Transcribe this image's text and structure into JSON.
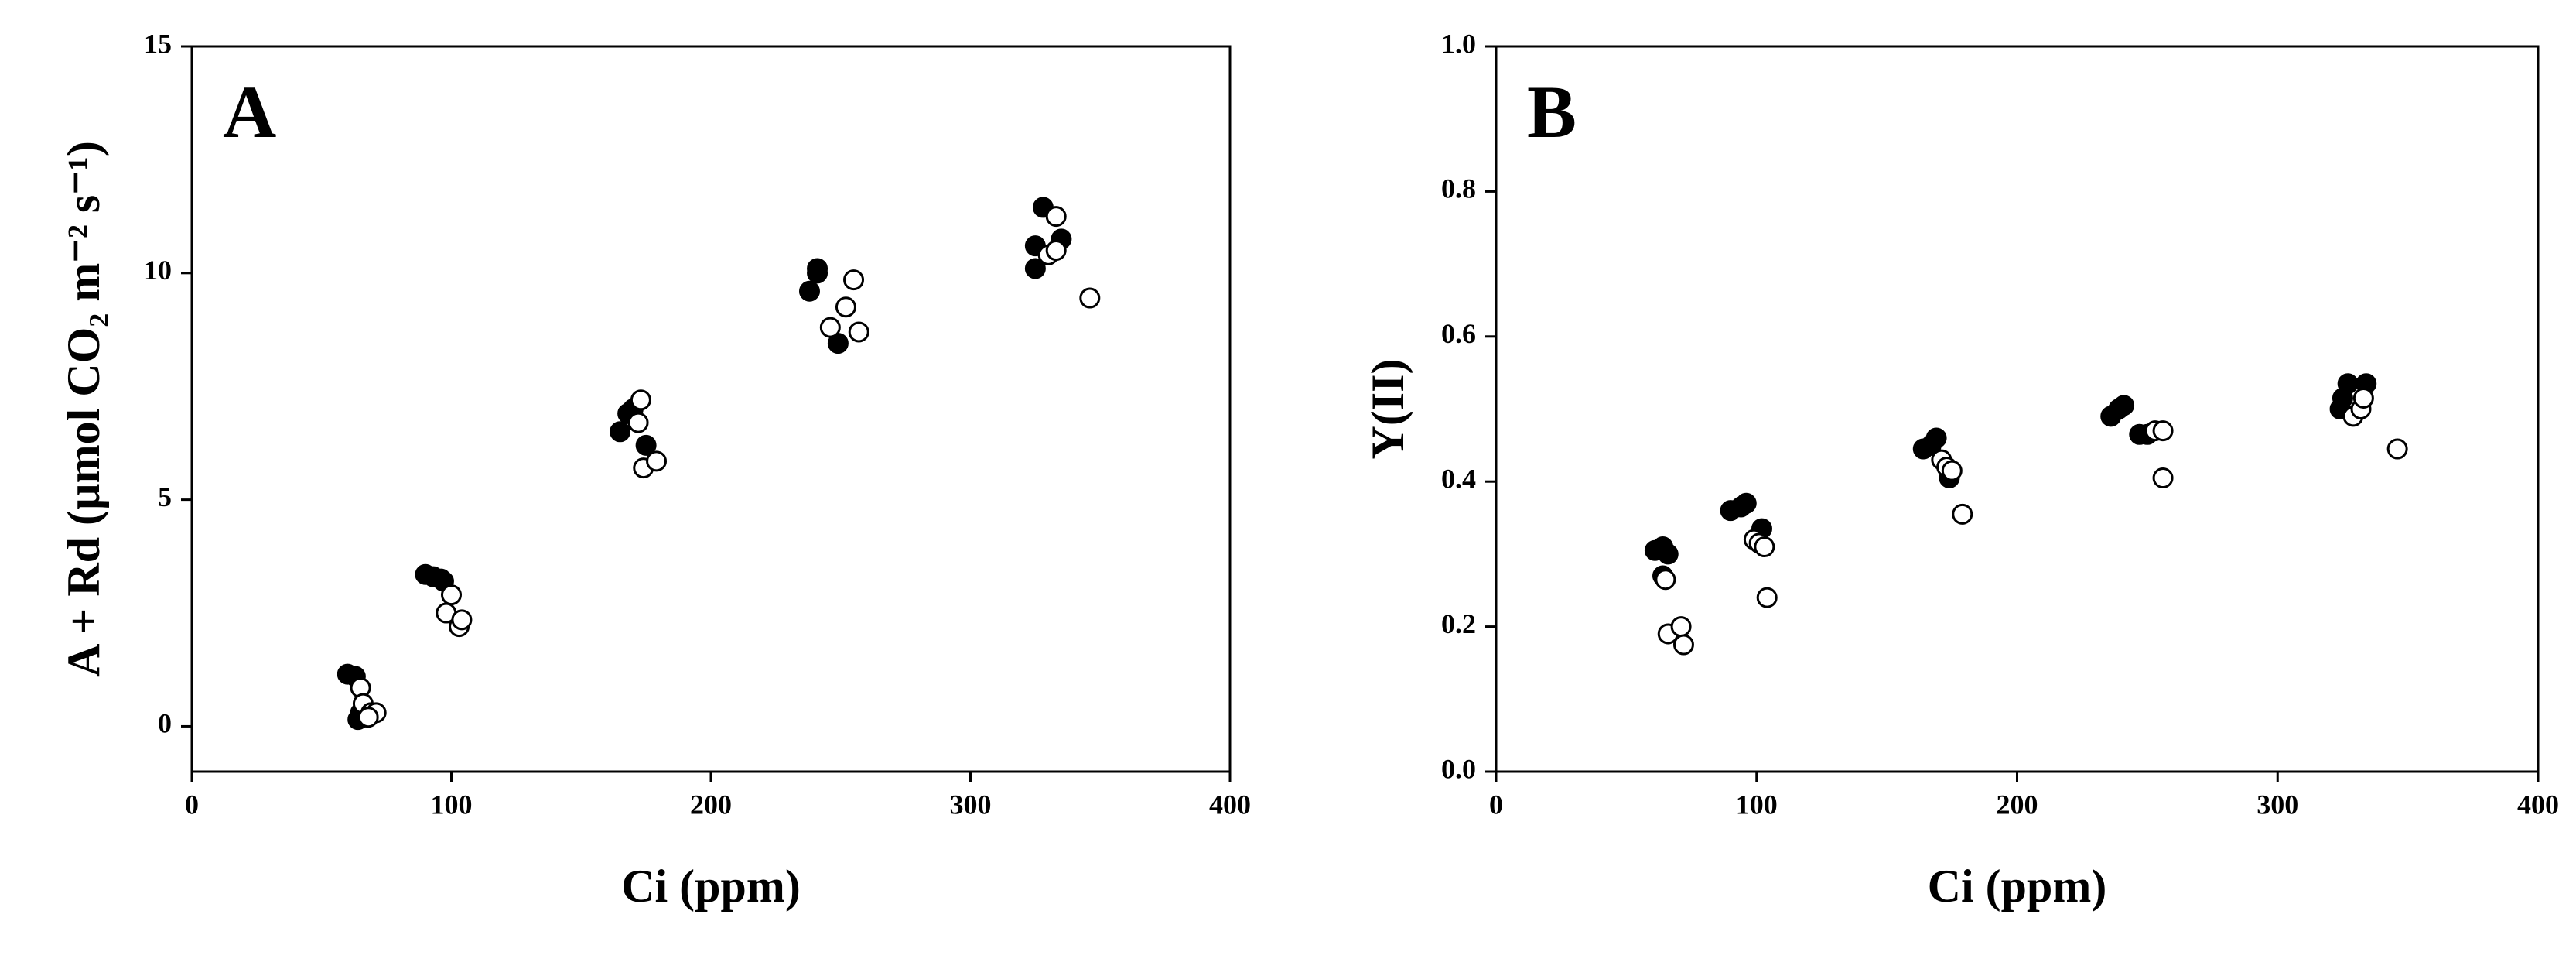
{
  "chart_data": [
    {
      "type": "scatter",
      "panel_label": "A",
      "x_label": "Ci (ppm)",
      "y_label": "A + Rd (µmol CO₂ m⁻² s⁻¹)",
      "xlim": [
        0,
        400
      ],
      "xticks": [
        0,
        100,
        200,
        300,
        400
      ],
      "ylim": [
        -1,
        15
      ],
      "yticks": [
        0,
        5,
        10,
        15
      ],
      "series": [
        {
          "color": "#000000",
          "marker_fill": "#000000",
          "x": [
            60,
            63,
            65,
            66,
            64,
            90,
            93,
            96,
            97,
            165,
            168,
            170,
            175,
            238,
            241,
            241,
            249,
            325,
            325,
            328,
            335
          ],
          "values": [
            1.15,
            1.1,
            0.3,
            0.2,
            0.15,
            3.35,
            3.3,
            3.25,
            3.2,
            6.5,
            6.9,
            7.0,
            6.2,
            9.6,
            10.0,
            10.1,
            8.45,
            10.1,
            10.6,
            11.45,
            10.75
          ]
        },
        {
          "color": "#000000",
          "marker_fill": "#ffffff",
          "x": [
            65,
            66,
            69,
            71,
            68,
            100,
            98,
            103,
            104,
            173,
            172,
            174,
            179,
            246,
            252,
            255,
            257,
            330,
            333,
            333,
            346
          ],
          "values": [
            0.85,
            0.5,
            0.3,
            0.3,
            0.2,
            2.9,
            2.5,
            2.2,
            2.35,
            7.2,
            6.7,
            5.7,
            5.85,
            8.8,
            9.25,
            9.85,
            8.7,
            10.4,
            11.25,
            10.5,
            9.45
          ]
        }
      ]
    },
    {
      "type": "scatter",
      "panel_label": "B",
      "x_label": "Ci (ppm)",
      "y_label": "Y(II)",
      "xlim": [
        0,
        400
      ],
      "xticks": [
        0,
        100,
        200,
        300,
        400
      ],
      "ylim": [
        0,
        1
      ],
      "yticks": [
        {
          "value": 0,
          "label": "0.0"
        },
        0.2,
        0.4,
        0.6,
        0.8,
        {
          "value": 1,
          "label": "1.0"
        }
      ],
      "series": [
        {
          "color": "#000000",
          "marker_fill": "#000000",
          "x": [
            61,
            64,
            66,
            64,
            90,
            94,
            96,
            102,
            164,
            167,
            169,
            174,
            236,
            239,
            241,
            247,
            250,
            324,
            325,
            327,
            334
          ],
          "values": [
            0.305,
            0.31,
            0.3,
            0.27,
            0.36,
            0.365,
            0.37,
            0.335,
            0.445,
            0.45,
            0.46,
            0.405,
            0.49,
            0.5,
            0.505,
            0.465,
            0.465,
            0.5,
            0.515,
            0.535,
            0.535
          ]
        },
        {
          "color": "#000000",
          "marker_fill": "#ffffff",
          "x": [
            65,
            66,
            71,
            72,
            99,
            101,
            103,
            104,
            171,
            173,
            175,
            179,
            253,
            256,
            256,
            329,
            332,
            333,
            346
          ],
          "values": [
            0.265,
            0.19,
            0.2,
            0.175,
            0.32,
            0.315,
            0.31,
            0.24,
            0.43,
            0.42,
            0.415,
            0.355,
            0.47,
            0.47,
            0.405,
            0.49,
            0.5,
            0.515,
            0.445
          ]
        }
      ]
    }
  ]
}
